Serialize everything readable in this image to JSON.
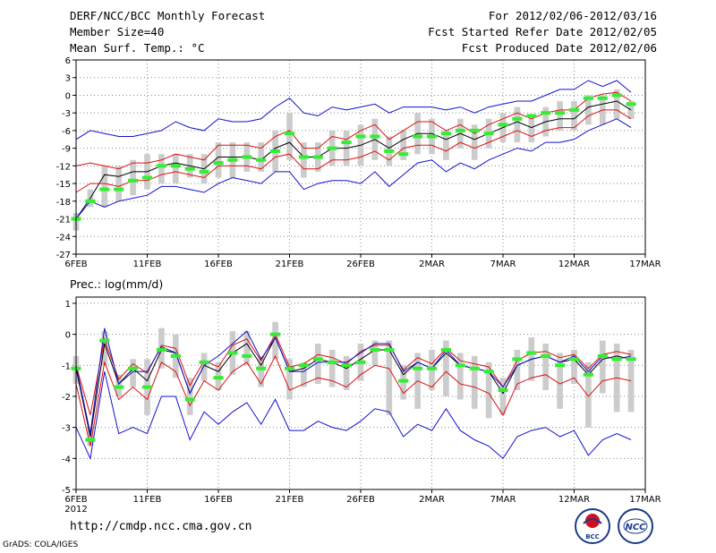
{
  "header": {
    "title": "DERF/NCC/BCC Monthly Forecast",
    "member": "Member Size=40",
    "variable": "Mean Surf. Temp.: °C",
    "period": "For 2012/02/06-2012/03/16",
    "started": "Fcst Started Refer Date 2012/02/05",
    "produced": "Fcst Produced Date 2012/02/06"
  },
  "footer": {
    "url": "http://cmdp.ncc.cma.gov.cn",
    "grads": "GrADS: COLA/IGES",
    "logo_left": "BCC",
    "logo_right": "NCC"
  },
  "colors": {
    "ens_mean": "#000000",
    "spread": "#dd1111",
    "extreme": "#1111cc",
    "box": "#cccccc",
    "obs": "#33ee33"
  },
  "chart_data": [
    {
      "type": "line",
      "title": "Mean Surf. Temp.: °C",
      "x_tick_labels": [
        "6FEB",
        "11FEB",
        "16FEB",
        "21FEB",
        "26FEB",
        "2MAR",
        "7MAR",
        "12MAR",
        "17MAR"
      ],
      "x_tick_days": [
        0,
        5,
        10,
        15,
        20,
        25,
        30,
        35,
        40
      ],
      "x_year_label": "2012",
      "y_ticks": [
        6,
        3,
        0,
        -3,
        -6,
        -9,
        -12,
        -15,
        -18,
        -21,
        -24,
        -27
      ],
      "ylim": [
        -27,
        6
      ],
      "days": [
        0,
        1,
        2,
        3,
        4,
        5,
        6,
        7,
        8,
        9,
        10,
        11,
        12,
        13,
        14,
        15,
        16,
        17,
        18,
        19,
        20,
        21,
        22,
        23,
        24,
        25,
        26,
        27,
        28,
        29,
        30,
        31,
        32,
        33,
        34,
        35,
        36,
        37,
        38,
        39
      ],
      "series": [
        {
          "name": "ensemble mean",
          "role": "mean",
          "values": [
            -21,
            -17.5,
            -13.5,
            -13.8,
            -13,
            -13,
            -12,
            -11.5,
            -12,
            -12.5,
            -10.5,
            -10.5,
            -10.5,
            -11,
            -9,
            -8,
            -10.5,
            -10.5,
            -9,
            -9,
            -8.5,
            -7.5,
            -9,
            -7.5,
            -6.5,
            -6.5,
            -7.5,
            -6.5,
            -7.5,
            -6.5,
            -5.5,
            -4.5,
            -5.5,
            -4.5,
            -4,
            -4,
            -2,
            -1.5,
            -1,
            -2.5
          ]
        },
        {
          "name": "mean + spread",
          "role": "upper",
          "values": [
            -12,
            -11.5,
            -12,
            -12.5,
            -11.5,
            -11.5,
            -11,
            -10,
            -10.5,
            -11,
            -8.5,
            -8.5,
            -8.5,
            -9,
            -7,
            -6,
            -9,
            -9,
            -7,
            -7.5,
            -6,
            -5,
            -7.5,
            -6,
            -4.5,
            -4.5,
            -6,
            -5,
            -6.5,
            -5,
            -4,
            -3,
            -4,
            -3,
            -2.5,
            -2.5,
            -0.5,
            0.2,
            0.5,
            -1
          ]
        },
        {
          "name": "mean - spread",
          "role": "lower",
          "values": [
            -16.5,
            -15,
            -15,
            -15.5,
            -14.5,
            -14.5,
            -13.5,
            -13,
            -13.5,
            -14,
            -12,
            -12,
            -12,
            -12.5,
            -10.5,
            -10,
            -12.5,
            -12.5,
            -11,
            -11,
            -10.5,
            -9.5,
            -11,
            -9,
            -8.5,
            -8.5,
            -9.5,
            -8,
            -9,
            -8,
            -7,
            -6,
            -7,
            -6,
            -5.5,
            -5.5,
            -3.5,
            -2.5,
            -2.5,
            -4
          ]
        },
        {
          "name": "ensemble maximum",
          "role": "max",
          "values": [
            -7.5,
            -6,
            -6.5,
            -7,
            -7,
            -6.5,
            -6,
            -4.5,
            -5.5,
            -6,
            -4,
            -4.5,
            -4.5,
            -4,
            -2,
            -0.5,
            -3,
            -3.5,
            -2,
            -2.5,
            -2,
            -1.5,
            -3,
            -2,
            -2,
            -2,
            -2.5,
            -2,
            -3,
            -2,
            -1.5,
            -1,
            -1,
            0,
            1,
            1,
            2.5,
            1.5,
            2.5,
            0.5
          ]
        },
        {
          "name": "ensemble minimum",
          "role": "min",
          "values": [
            -21,
            -18,
            -19,
            -18,
            -17.5,
            -17,
            -15.5,
            -15.5,
            -16,
            -16.5,
            -15,
            -14,
            -14.5,
            -15,
            -13,
            -13,
            -16,
            -15,
            -14.5,
            -14.5,
            -15,
            -13,
            -15.5,
            -13.5,
            -11.5,
            -11,
            -13,
            -11.5,
            -12.5,
            -11,
            -10,
            -9,
            -9.5,
            -8,
            -8,
            -7.5,
            -6,
            -5,
            -4,
            -5.5
          ]
        }
      ],
      "box_low": [
        -23,
        -19,
        -19,
        -18,
        -17,
        -16,
        -15,
        -15,
        -14,
        -15,
        -14,
        -14,
        -13,
        -13,
        -13,
        -11,
        -14,
        -13,
        -12,
        -12,
        -12,
        -11,
        -12,
        -11,
        -10,
        -10,
        -11,
        -9,
        -11,
        -9,
        -8,
        -8,
        -8,
        -7,
        -6,
        -6,
        -5,
        -5,
        -4,
        -4
      ],
      "box_high": [
        -20,
        -16,
        -12,
        -12,
        -11,
        -10,
        -10,
        -10,
        -10,
        -10,
        -8,
        -8,
        -8,
        -8,
        -6,
        -3,
        -8,
        -8,
        -6,
        -6,
        -5,
        -4,
        -7,
        -6,
        -3,
        -4,
        -6,
        -4,
        -5,
        -4,
        -3,
        -2,
        -4,
        -2,
        -1,
        -1,
        0,
        0,
        1,
        -1
      ],
      "observed": [
        -21,
        -18,
        -16,
        -16,
        -14.5,
        -14,
        -12,
        -12,
        -12.5,
        -13,
        -11.5,
        -11,
        -10.5,
        -11,
        -9.5,
        -6.5,
        -10.5,
        -10.5,
        -9,
        -8,
        -7,
        -7,
        -9.5,
        -10,
        -7,
        -7,
        -6.5,
        -6,
        -6,
        -6.5,
        -5,
        -4,
        -3.5,
        -3,
        -3,
        -2.5,
        -0.5,
        -0.5,
        0,
        -1.5
      ]
    },
    {
      "type": "line",
      "title": "Prec.: log(mm/d)",
      "x_tick_labels": [
        "6FEB",
        "11FEB",
        "16FEB",
        "21FEB",
        "26FEB",
        "2MAR",
        "7MAR",
        "12MAR",
        "17MAR"
      ],
      "x_tick_days": [
        0,
        5,
        10,
        15,
        20,
        25,
        30,
        35,
        40
      ],
      "x_year_label": "2012",
      "y_ticks": [
        1,
        0,
        -1,
        -2,
        -3,
        -4,
        -5
      ],
      "ylim": [
        -5,
        1.2
      ],
      "days": [
        0,
        1,
        2,
        3,
        4,
        5,
        6,
        7,
        8,
        9,
        10,
        11,
        12,
        13,
        14,
        15,
        16,
        17,
        18,
        19,
        20,
        21,
        22,
        23,
        24,
        25,
        26,
        27,
        28,
        29,
        30,
        31,
        32,
        33,
        34,
        35,
        36,
        37,
        38,
        39
      ],
      "series": [
        {
          "name": "ensemble mean",
          "role": "mean",
          "values": [
            -1.1,
            -3.3,
            -0.3,
            -1.6,
            -1.1,
            -1.5,
            -0.5,
            -0.6,
            -1.9,
            -1,
            -1.2,
            -0.6,
            -0.3,
            -1,
            -0.1,
            -1.2,
            -1.1,
            -0.8,
            -0.9,
            -1.1,
            -0.8,
            -0.5,
            -0.5,
            -1.3,
            -0.9,
            -1.1,
            -0.6,
            -1,
            -1.1,
            -1.2,
            -1.9,
            -1,
            -0.8,
            -0.7,
            -0.9,
            -0.8,
            -1.3,
            -0.8,
            -0.7,
            -0.8
          ]
        },
        {
          "name": "mean + spread",
          "role": "upper",
          "values": [
            -1,
            -2.6,
            -0.15,
            -1.45,
            -0.95,
            -1.25,
            -0.35,
            -0.45,
            -1.65,
            -0.85,
            -1.05,
            -0.35,
            -0.15,
            -0.85,
            0,
            -1.05,
            -0.95,
            -0.65,
            -0.75,
            -0.95,
            -0.55,
            -0.35,
            -0.35,
            -1.15,
            -0.75,
            -0.95,
            -0.45,
            -0.85,
            -0.95,
            -1.05,
            -1.7,
            -0.85,
            -0.6,
            -0.55,
            -0.75,
            -0.65,
            -1.1,
            -0.65,
            -0.55,
            -0.65
          ]
        },
        {
          "name": "mean - spread",
          "role": "lower",
          "values": [
            -1.6,
            -3.6,
            -0.9,
            -2.1,
            -1.7,
            -2.1,
            -0.9,
            -1.2,
            -2.3,
            -1.5,
            -1.8,
            -1.2,
            -0.9,
            -1.6,
            -0.7,
            -1.8,
            -1.6,
            -1.4,
            -1.5,
            -1.7,
            -1.3,
            -1,
            -1.1,
            -1.9,
            -1.5,
            -1.7,
            -1.2,
            -1.6,
            -1.7,
            -1.9,
            -2.6,
            -1.6,
            -1.4,
            -1.3,
            -1.6,
            -1.4,
            -2,
            -1.5,
            -1.4,
            -1.5
          ]
        },
        {
          "name": "ensemble maximum",
          "role": "max",
          "values": [
            -1,
            -3.2,
            0.2,
            -1.6,
            -1.2,
            -1.2,
            -0.4,
            -0.6,
            -1.9,
            -1,
            -0.7,
            -0.3,
            0.1,
            -0.8,
            -0.1,
            -1.2,
            -1.2,
            -0.9,
            -0.9,
            -0.9,
            -0.6,
            -0.3,
            -0.3,
            -1.2,
            -0.9,
            -1.1,
            -0.5,
            -1,
            -1.1,
            -1.2,
            -1.7,
            -1,
            -0.8,
            -0.7,
            -0.9,
            -0.7,
            -1.2,
            -0.7,
            -0.8,
            -0.7
          ]
        },
        {
          "name": "ensemble minimum",
          "role": "min",
          "values": [
            -3,
            -4,
            -1.2,
            -3.2,
            -3,
            -3.2,
            -2,
            -2,
            -3.4,
            -2.5,
            -2.9,
            -2.5,
            -2.2,
            -2.9,
            -2.1,
            -3.1,
            -3.1,
            -2.8,
            -3,
            -3.1,
            -2.8,
            -2.4,
            -2.5,
            -3.3,
            -2.9,
            -3.1,
            -2.4,
            -3.1,
            -3.4,
            -3.6,
            -4,
            -3.3,
            -3.1,
            -3,
            -3.3,
            -3.1,
            -3.9,
            -3.4,
            -3.2,
            -3.4
          ]
        }
      ],
      "box_low": [
        -1.6,
        -3.6,
        -1,
        -2,
        -1.7,
        -2.6,
        -1.1,
        -1.4,
        -2.6,
        -1.5,
        -1.8,
        -1.3,
        -1,
        -1.7,
        -0.8,
        -2.1,
        -1.7,
        -1.6,
        -1.7,
        -1.8,
        -1.5,
        -1,
        -2.6,
        -2.1,
        -2.4,
        -1.8,
        -2,
        -2.1,
        -2.4,
        -2.7,
        -2.6,
        -1.8,
        -1.5,
        -1.8,
        -2.4,
        -1.6,
        -3,
        -1.9,
        -2.5,
        -2.5
      ],
      "box_high": [
        -0.7,
        -3,
        0.1,
        -1.3,
        -0.8,
        -0.8,
        0.2,
        0,
        -1.4,
        -0.6,
        -0.9,
        0.1,
        0.1,
        -0.7,
        0.4,
        -0.8,
        -0.9,
        -0.3,
        -0.5,
        -0.7,
        -0.3,
        -0.2,
        -0.2,
        -1,
        -0.6,
        -0.5,
        -0.2,
        -0.6,
        -0.7,
        -0.9,
        -1.4,
        -0.5,
        -0.1,
        -0.3,
        -0.6,
        -0.5,
        -0.9,
        -0.2,
        -0.3,
        -0.5
      ],
      "observed": [
        -1.1,
        -3.4,
        -0.2,
        -1.7,
        -1.1,
        -1.7,
        -0.5,
        -0.7,
        -2.1,
        -0.9,
        -1.4,
        -0.6,
        -0.7,
        -1.1,
        0,
        -1.1,
        -1,
        -0.8,
        -0.9,
        -1,
        -0.9,
        -0.5,
        -0.5,
        -1.5,
        -1.1,
        -1.1,
        -0.5,
        -1,
        -1.1,
        -1.2,
        -1.8,
        -0.8,
        -0.6,
        -0.7,
        -1,
        -0.8,
        -1.3,
        -0.7,
        -0.8,
        -0.8
      ]
    }
  ]
}
